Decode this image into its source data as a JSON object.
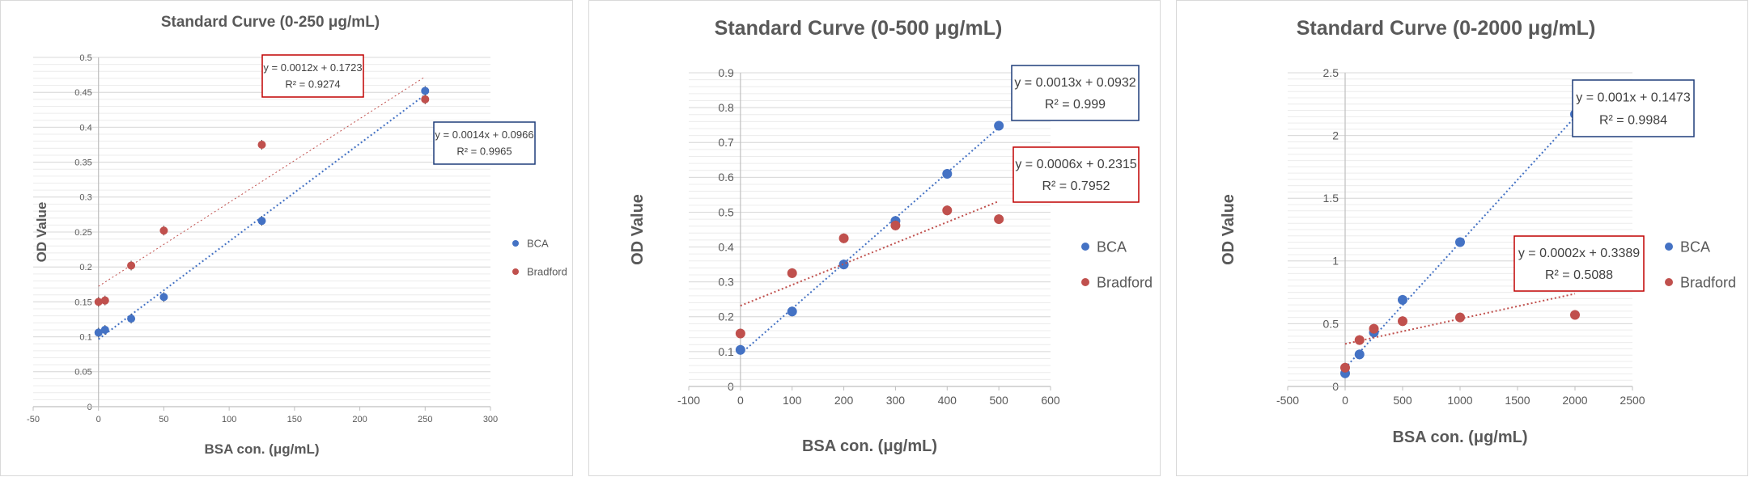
{
  "colors": {
    "bca": "#4472c4",
    "bradford": "#c0504d",
    "grid": "#d9d9d9",
    "axis": "#bfbfbf",
    "text": "#595959"
  },
  "chart_data": [
    {
      "type": "scatter",
      "title": "Standard Curve (0-250 μg/mL)",
      "xlabel": "BSA con. (μg/mL)",
      "ylabel": "OD Value",
      "xlim": [
        -50,
        300
      ],
      "ylim": [
        0,
        0.5
      ],
      "xticks": [
        -50,
        0,
        50,
        100,
        150,
        200,
        250,
        300
      ],
      "yticks": [
        0,
        0.05,
        0.1,
        0.15,
        0.2,
        0.25,
        0.3,
        0.35,
        0.4,
        0.45,
        0.5
      ],
      "x_tick_labels": [
        "-50",
        "0",
        "50",
        "100",
        "150",
        "200",
        "250",
        "300"
      ],
      "y_tick_labels": [
        "0",
        "0.05",
        "0.1",
        "0.15",
        "0.2",
        "0.25",
        "0.3",
        "0.35",
        "0.4",
        "0.45",
        "0.5"
      ],
      "grid": true,
      "legend": "right",
      "series": [
        {
          "name": "BCA",
          "x": [
            0,
            5,
            25,
            50,
            125,
            250
          ],
          "y": [
            0.106,
            0.11,
            0.126,
            0.157,
            0.266,
            0.452
          ],
          "trendline": {
            "slope": 0.0014,
            "intercept": 0.0966,
            "x_range": [
              0,
              250
            ],
            "equation": "y = 0.0014x + 0.0966",
            "r2": "R² = 0.9965"
          }
        },
        {
          "name": "Bradford",
          "x": [
            0,
            5,
            25,
            50,
            125,
            250
          ],
          "y": [
            0.15,
            0.152,
            0.202,
            0.252,
            0.375,
            0.44
          ],
          "trendline": {
            "slope": 0.0012,
            "intercept": 0.1723,
            "x_range": [
              0,
              250
            ],
            "equation": "y = 0.0012x + 0.1723",
            "r2": "R² = 0.9274"
          }
        }
      ]
    },
    {
      "type": "scatter",
      "title": "Standard Curve (0-500 μg/mL)",
      "xlabel": "BSA con. (μg/mL)",
      "ylabel": "OD Value",
      "xlim": [
        -100,
        600
      ],
      "ylim": [
        0,
        0.9
      ],
      "xticks": [
        -100,
        0,
        100,
        200,
        300,
        400,
        500,
        600
      ],
      "yticks": [
        0,
        0.1,
        0.2,
        0.3,
        0.4,
        0.5,
        0.6,
        0.7,
        0.8,
        0.9
      ],
      "x_tick_labels": [
        "-100",
        "0",
        "100",
        "200",
        "300",
        "400",
        "500",
        "600"
      ],
      "y_tick_labels": [
        "0",
        "0.1",
        "0.2",
        "0.3",
        "0.4",
        "0.5",
        "0.6",
        "0.7",
        "0.8",
        "0.9"
      ],
      "grid": true,
      "legend": "right",
      "series": [
        {
          "name": "BCA",
          "x": [
            0,
            100,
            200,
            300,
            400,
            500
          ],
          "y": [
            0.105,
            0.215,
            0.35,
            0.475,
            0.61,
            0.748
          ],
          "trendline": {
            "slope": 0.0013,
            "intercept": 0.0932,
            "x_range": [
              0,
              500
            ],
            "equation": "y = 0.0013x + 0.0932",
            "r2": "R² = 0.999"
          }
        },
        {
          "name": "Bradford",
          "x": [
            0,
            100,
            200,
            300,
            400,
            500
          ],
          "y": [
            0.152,
            0.325,
            0.425,
            0.462,
            0.505,
            0.48
          ],
          "trendline": {
            "slope": 0.0006,
            "intercept": 0.2315,
            "x_range": [
              0,
              500
            ],
            "equation": "y = 0.0006x + 0.2315",
            "r2": "R² = 0.7952"
          }
        }
      ]
    },
    {
      "type": "scatter",
      "title": "Standard Curve (0-2000 μg/mL)",
      "xlabel": "BSA con. (μg/mL)",
      "ylabel": "OD Value",
      "xlim": [
        -500,
        2500
      ],
      "ylim": [
        0,
        2.5
      ],
      "xticks": [
        -500,
        0,
        500,
        1000,
        1500,
        2000,
        2500
      ],
      "yticks": [
        0,
        0.5,
        1,
        1.5,
        2,
        2.5
      ],
      "x_tick_labels": [
        "-500",
        "0",
        "500",
        "1000",
        "1500",
        "2000",
        "2500"
      ],
      "y_tick_labels": [
        "0",
        "0.5",
        "1",
        "1.5",
        "2",
        "2.5"
      ],
      "grid": true,
      "legend": "right",
      "series": [
        {
          "name": "BCA",
          "x": [
            0,
            125,
            250,
            500,
            1000,
            2000
          ],
          "y": [
            0.105,
            0.255,
            0.43,
            0.69,
            1.15,
            2.17
          ],
          "trendline": {
            "slope": 0.001,
            "intercept": 0.1473,
            "x_range": [
              0,
              2000
            ],
            "equation": "y = 0.001x + 0.1473",
            "r2": "R² = 0.9984"
          }
        },
        {
          "name": "Bradford",
          "x": [
            0,
            125,
            250,
            500,
            1000,
            2000
          ],
          "y": [
            0.15,
            0.37,
            0.46,
            0.52,
            0.55,
            0.57
          ],
          "trendline": {
            "slope": 0.0002,
            "intercept": 0.3389,
            "x_range": [
              0,
              2000
            ],
            "equation": "y = 0.0002x + 0.3389",
            "r2": "R² = 0.5088"
          }
        }
      ]
    }
  ]
}
